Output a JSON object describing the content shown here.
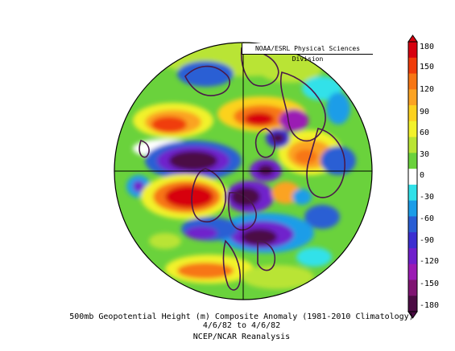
{
  "map": {
    "projection": "north-polar-stereographic",
    "credit": "NOAA/ESRL Physical Sciences Division"
  },
  "colorbar": {
    "labels": [
      "180",
      "150",
      "120",
      "90",
      "60",
      "30",
      "0",
      "-30",
      "-60",
      "-90",
      "-120",
      "-150",
      "-180"
    ],
    "colors": [
      "#d7000f",
      "#f03c0a",
      "#f77614",
      "#fba323",
      "#fcd21f",
      "#f2f22b",
      "#b9e434",
      "#6ad23c",
      "#ffffff",
      "#31e1e9",
      "#1b9de8",
      "#2a5ed4",
      "#3c2fd1",
      "#7020cc",
      "#9b1bb4",
      "#7f1472",
      "#4c0c44"
    ]
  },
  "caption": {
    "line1": "500mb Geopotential Height (m) Composite Anomaly (1981-2010 Climatology)",
    "line2": "4/6/82  to 4/6/82",
    "line3": "NCEP/NCAR Reanalysis"
  }
}
